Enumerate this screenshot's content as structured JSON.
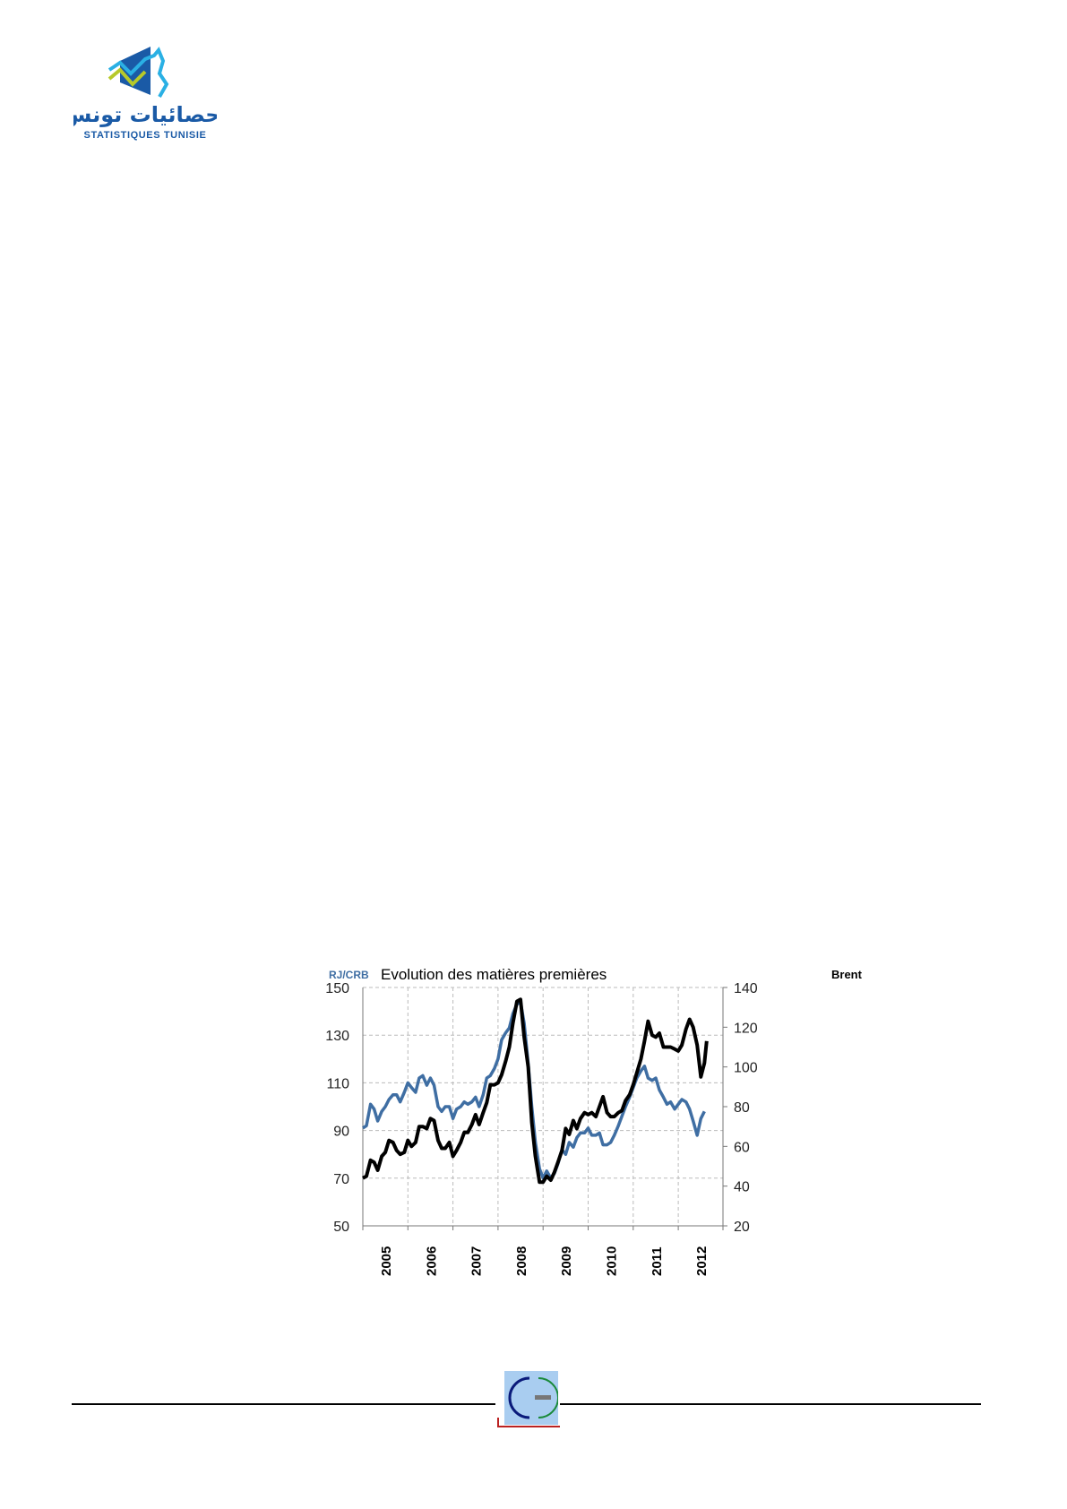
{
  "header": {
    "logo_text_ar": "إحصائيات تونس",
    "logo_text_fr": "STATISTIQUES TUNISIE"
  },
  "colors": {
    "rjcrb": "#3f6ea3",
    "brent": "#000000",
    "logo_blue": "#1a5aa6",
    "logo_green": "#b6c92a",
    "logo_cyan": "#2ab0e4"
  },
  "chart_data": {
    "type": "line",
    "title": "Evolution des matières premières",
    "ylabel_left": "RJ/CRB",
    "ylabel_right": "Brent",
    "ylim_left": [
      50,
      150
    ],
    "ylim_right": [
      20,
      140
    ],
    "yticks_left": [
      50,
      70,
      90,
      110,
      130,
      150
    ],
    "yticks_right": [
      20,
      40,
      60,
      80,
      100,
      120,
      140
    ],
    "xlim": [
      2005,
      2012.92
    ],
    "xticks": [
      "2005",
      "2006",
      "2007",
      "2008",
      "2009",
      "2010",
      "2011",
      "2012"
    ],
    "grid": true,
    "series": [
      {
        "name": "RJ/CRB",
        "axis": "left",
        "color": "#3f6ea3",
        "x": [
          2005.0,
          2005.08,
          2005.17,
          2005.25,
          2005.33,
          2005.42,
          2005.5,
          2005.58,
          2005.67,
          2005.75,
          2005.83,
          2005.92,
          2006.0,
          2006.08,
          2006.17,
          2006.25,
          2006.33,
          2006.42,
          2006.5,
          2006.58,
          2006.67,
          2006.75,
          2006.83,
          2006.92,
          2007.0,
          2007.08,
          2007.17,
          2007.25,
          2007.33,
          2007.42,
          2007.5,
          2007.58,
          2007.67,
          2007.75,
          2007.83,
          2007.92,
          2008.0,
          2008.08,
          2008.17,
          2008.25,
          2008.33,
          2008.42,
          2008.5,
          2008.58,
          2008.67,
          2008.75,
          2008.83,
          2008.92,
          2009.0,
          2009.08,
          2009.17,
          2009.25,
          2009.33,
          2009.42,
          2009.5,
          2009.58,
          2009.67,
          2009.75,
          2009.83,
          2009.92,
          2010.0,
          2010.08,
          2010.17,
          2010.25,
          2010.33,
          2010.42,
          2010.5,
          2010.58,
          2010.67,
          2010.75,
          2010.83,
          2010.92,
          2011.0,
          2011.08,
          2011.17,
          2011.25,
          2011.33,
          2011.42,
          2011.5,
          2011.58,
          2011.67,
          2011.75,
          2011.83,
          2011.92,
          2012.0,
          2012.08,
          2012.17,
          2012.25,
          2012.33,
          2012.42,
          2012.5,
          2012.58
        ],
        "values": [
          91,
          92,
          101,
          99,
          94,
          98,
          100,
          103,
          105,
          105,
          102,
          106,
          110,
          108,
          106,
          112,
          113,
          109,
          112,
          109,
          100,
          98,
          100,
          100,
          95,
          99,
          100,
          102,
          101,
          102,
          104,
          100,
          105,
          112,
          113,
          116,
          120,
          128,
          131,
          133,
          139,
          143,
          144,
          135,
          118,
          100,
          85,
          74,
          70,
          73,
          70,
          72,
          76,
          82,
          80,
          85,
          83,
          87,
          89,
          89,
          91,
          88,
          88,
          89,
          84,
          84,
          85,
          88,
          92,
          96,
          100,
          104,
          108,
          112,
          115,
          117,
          112,
          111,
          112,
          107,
          104,
          101,
          102,
          99,
          101,
          103,
          102,
          99,
          94,
          88,
          95,
          98
        ]
      },
      {
        "name": "Brent",
        "axis": "right",
        "color": "#000000",
        "x": [
          2005.0,
          2005.08,
          2005.17,
          2005.25,
          2005.33,
          2005.42,
          2005.5,
          2005.58,
          2005.67,
          2005.75,
          2005.83,
          2005.92,
          2006.0,
          2006.08,
          2006.17,
          2006.25,
          2006.33,
          2006.42,
          2006.5,
          2006.58,
          2006.67,
          2006.75,
          2006.83,
          2006.92,
          2007.0,
          2007.08,
          2007.17,
          2007.25,
          2007.33,
          2007.42,
          2007.5,
          2007.58,
          2007.67,
          2007.75,
          2007.83,
          2007.92,
          2008.0,
          2008.08,
          2008.17,
          2008.25,
          2008.33,
          2008.42,
          2008.5,
          2008.58,
          2008.67,
          2008.75,
          2008.83,
          2008.92,
          2009.0,
          2009.08,
          2009.17,
          2009.25,
          2009.33,
          2009.42,
          2009.5,
          2009.58,
          2009.67,
          2009.75,
          2009.83,
          2009.92,
          2010.0,
          2010.08,
          2010.17,
          2010.25,
          2010.33,
          2010.42,
          2010.5,
          2010.58,
          2010.67,
          2010.75,
          2010.83,
          2010.92,
          2011.0,
          2011.08,
          2011.17,
          2011.25,
          2011.33,
          2011.42,
          2011.5,
          2011.58,
          2011.67,
          2011.75,
          2011.83,
          2011.92,
          2012.0,
          2012.08,
          2012.17,
          2012.25,
          2012.33,
          2012.42,
          2012.5,
          2012.58,
          2012.63
        ],
        "values": [
          44,
          45,
          53,
          52,
          48,
          55,
          57,
          63,
          62,
          58,
          56,
          57,
          63,
          60,
          62,
          70,
          70,
          69,
          74,
          73,
          63,
          59,
          59,
          62,
          55,
          58,
          62,
          67,
          67,
          71,
          76,
          71,
          77,
          82,
          91,
          91,
          92,
          96,
          103,
          110,
          122,
          133,
          134,
          115,
          100,
          72,
          55,
          42,
          42,
          45,
          43,
          47,
          52,
          58,
          69,
          66,
          73,
          69,
          74,
          77,
          76,
          77,
          75,
          80,
          85,
          77,
          75,
          75,
          77,
          78,
          83,
          86,
          91,
          97,
          104,
          113,
          123,
          116,
          115,
          117,
          110,
          110,
          110,
          109,
          108,
          111,
          119,
          124,
          120,
          111,
          95,
          102,
          113
        ]
      }
    ]
  }
}
